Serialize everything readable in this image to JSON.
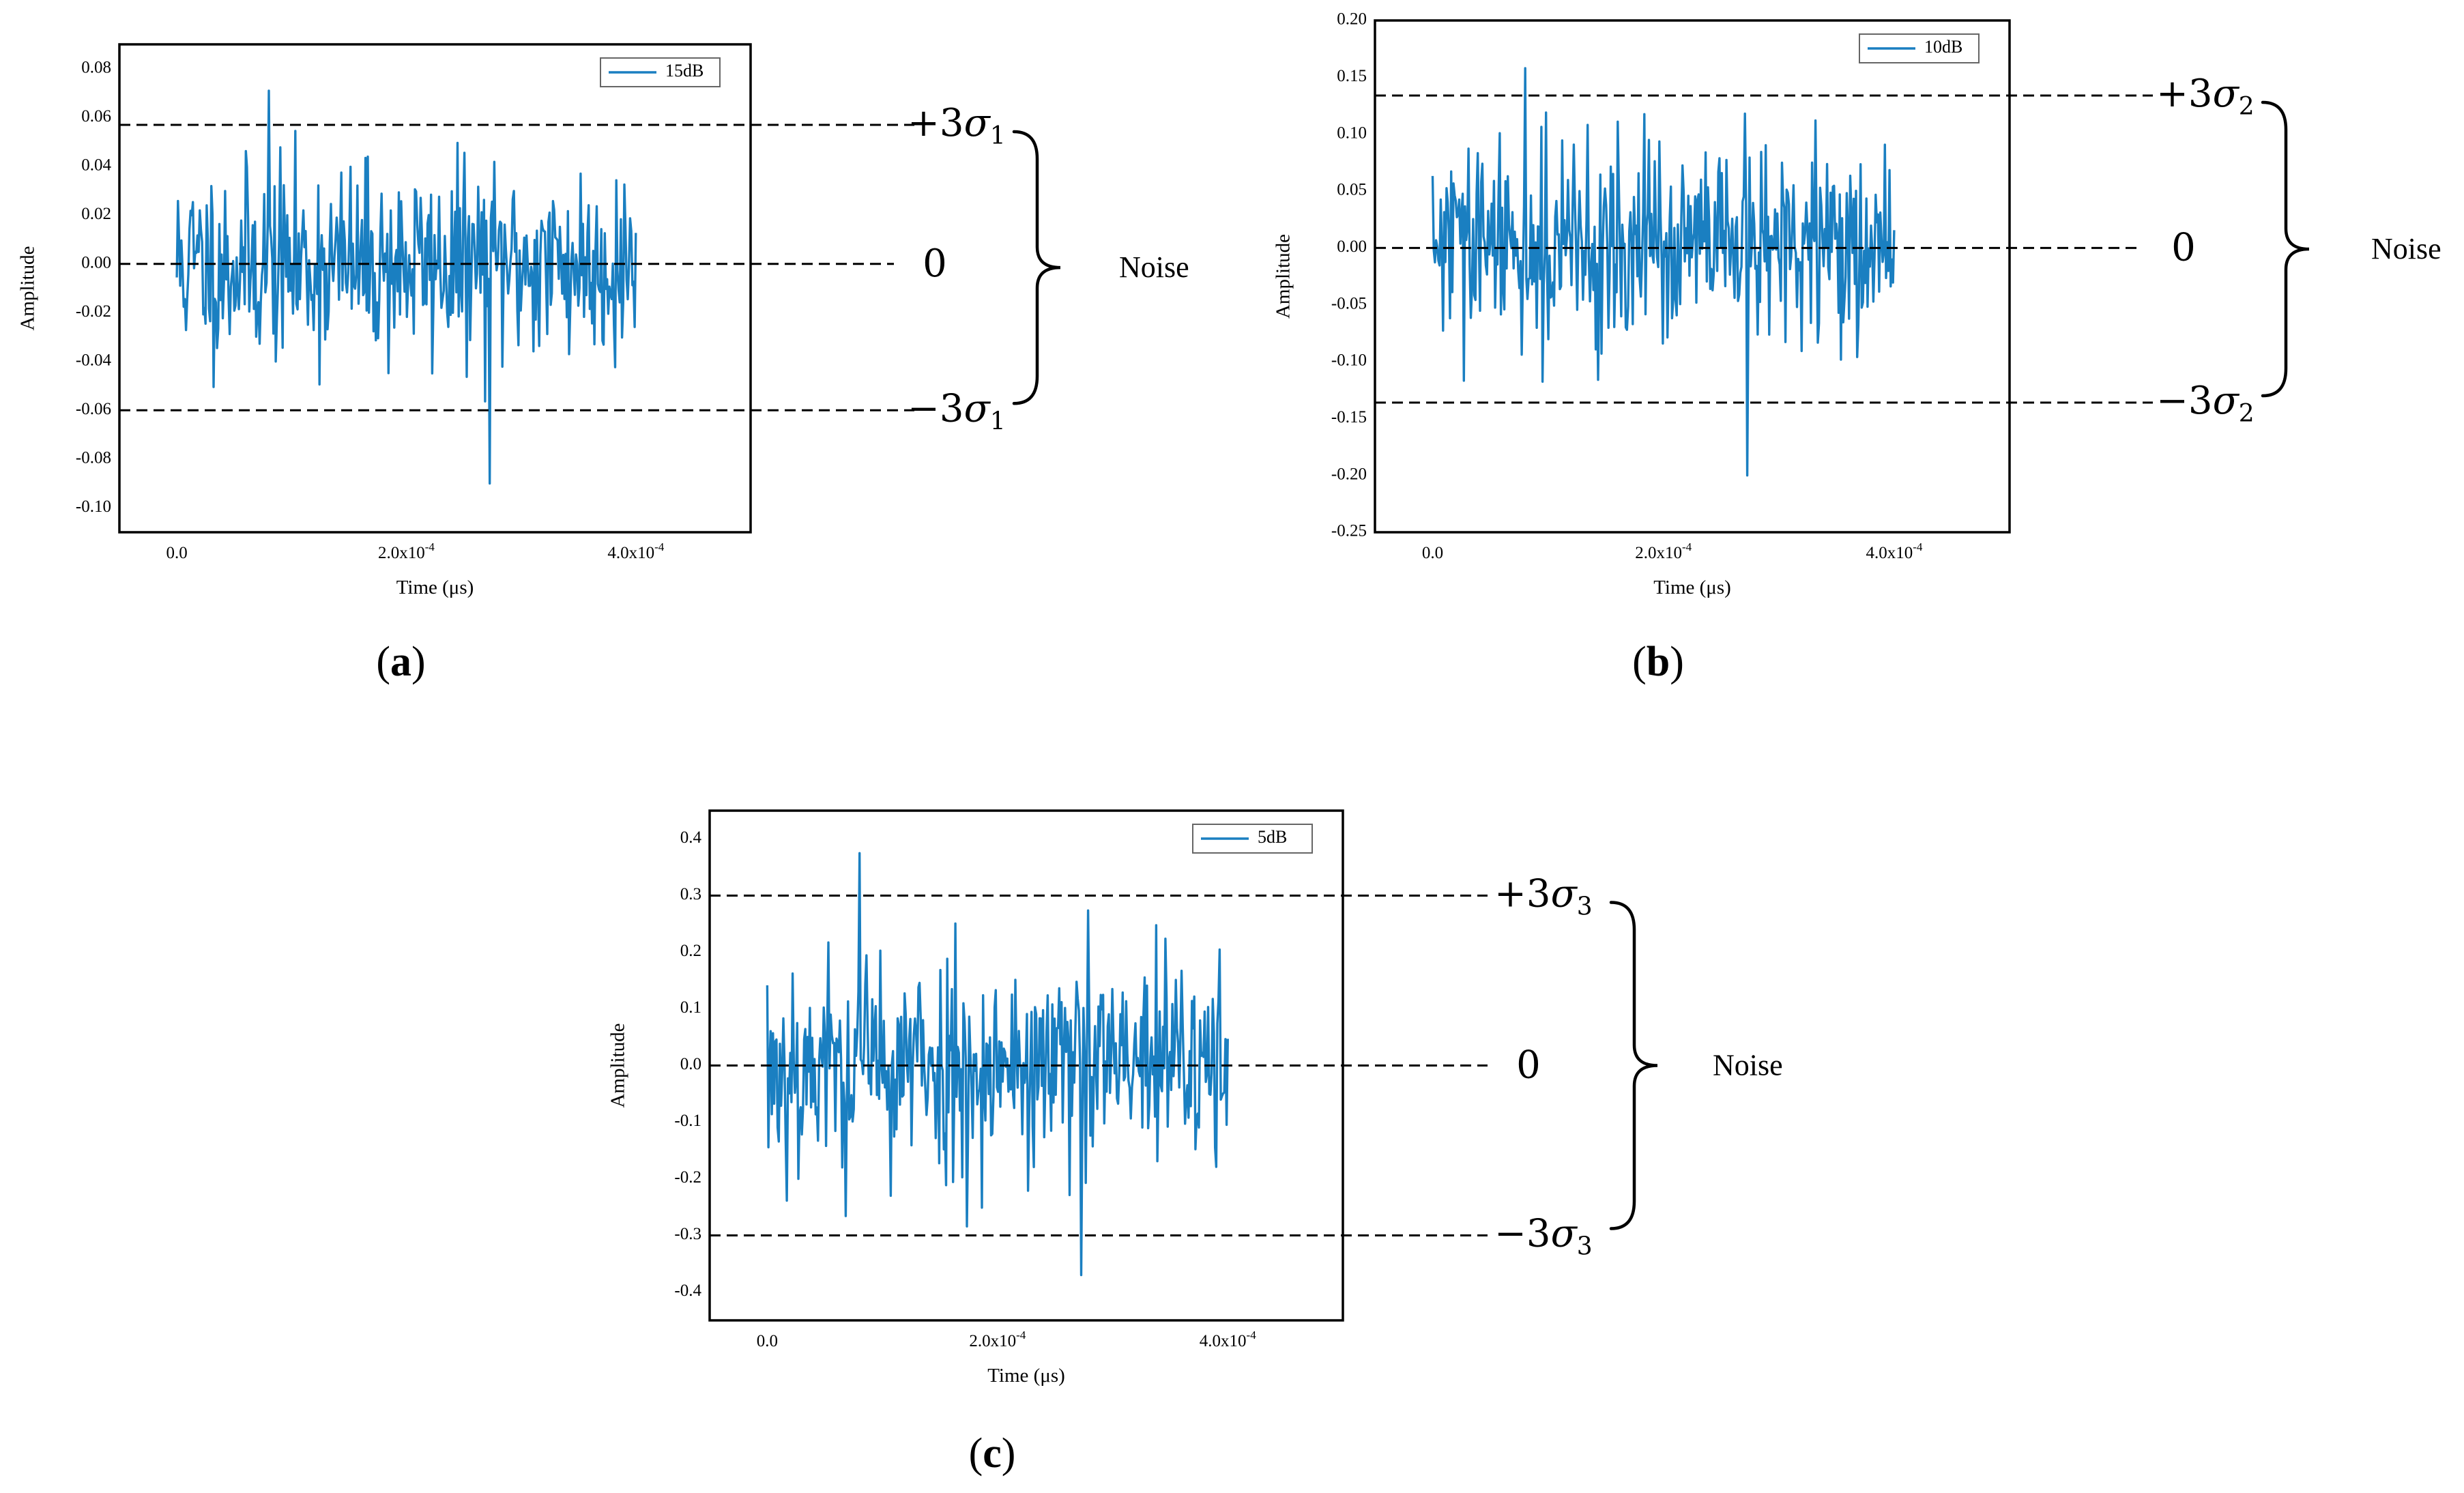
{
  "colors": {
    "signal": "#1a7fc1",
    "axis": "#000000",
    "text": "#000000"
  },
  "panels": [
    {
      "id": "a",
      "label": "a",
      "legend": "15dB",
      "xlabel": "Time (μs)",
      "ylabel": "Amplitude",
      "yticks": [
        "0.08",
        "0.06",
        "0.04",
        "0.02",
        "0.00",
        "-0.02",
        "-0.04",
        "-0.06",
        "-0.08",
        "-0.10"
      ],
      "xticks": [
        {
          "base": "0.0",
          "exp": ""
        },
        {
          "base": "2.0x10",
          "exp": "-4"
        },
        {
          "base": "4.0x10",
          "exp": "-4"
        }
      ],
      "plus_sigma_prefix": "+3",
      "minus_sigma_prefix": "−3",
      "sigma_symbol": "σ",
      "sigma_sub": "1",
      "zero_label": "0",
      "noise_label": "Noise"
    },
    {
      "id": "b",
      "label": "b",
      "legend": "10dB",
      "xlabel": "Time (μs)",
      "ylabel": "Amplitude",
      "yticks": [
        "0.20",
        "0.15",
        "0.10",
        "0.05",
        "0.00",
        "-0.05",
        "-0.10",
        "-0.15",
        "-0.20",
        "-0.25"
      ],
      "xticks": [
        {
          "base": "0.0",
          "exp": ""
        },
        {
          "base": "2.0x10",
          "exp": "-4"
        },
        {
          "base": "4.0x10",
          "exp": "-4"
        }
      ],
      "plus_sigma_prefix": "+3",
      "minus_sigma_prefix": "−3",
      "sigma_symbol": "σ",
      "sigma_sub": "2",
      "zero_label": "0",
      "noise_label": "Noise"
    },
    {
      "id": "c",
      "label": "c",
      "legend": "5dB",
      "xlabel": "Time (μs)",
      "ylabel": "Amplitude",
      "yticks": [
        "0.4",
        "0.3",
        "0.2",
        "0.1",
        "0.0",
        "-0.1",
        "-0.2",
        "-0.3",
        "-0.4"
      ],
      "xticks": [
        {
          "base": "0.0",
          "exp": ""
        },
        {
          "base": "2.0x10",
          "exp": "-4"
        },
        {
          "base": "4.0x10",
          "exp": "-4"
        }
      ],
      "plus_sigma_prefix": "+3",
      "minus_sigma_prefix": "−3",
      "sigma_symbol": "σ",
      "sigma_sub": "3",
      "zero_label": "0",
      "noise_label": "Noise"
    }
  ],
  "chart_data": [
    {
      "type": "line",
      "xlim": [
        -5e-05,
        0.0005
      ],
      "ylim": [
        -0.11,
        0.09
      ],
      "grid": false,
      "legend_position": "top-right",
      "series": [
        {
          "name": "15dB",
          "x_range": [
            0,
            0.0004
          ],
          "sample_count": 400,
          "std": 0.02,
          "min": -0.09,
          "max": 0.071,
          "mean": 0.0
        }
      ],
      "thresholds": {
        "plus_3sigma": 0.057,
        "zero": 0.0,
        "minus_3sigma": -0.06
      }
    },
    {
      "type": "line",
      "xlim": [
        -5e-05,
        0.0005
      ],
      "ylim": [
        -0.25,
        0.2
      ],
      "grid": false,
      "legend_position": "top-right",
      "series": [
        {
          "name": "10dB",
          "x_range": [
            0,
            0.0004
          ],
          "sample_count": 400,
          "std": 0.045,
          "min": -0.2,
          "max": 0.158,
          "mean": 0.0
        }
      ],
      "thresholds": {
        "plus_3sigma": 0.134,
        "zero": 0.0,
        "minus_3sigma": -0.136
      }
    },
    {
      "type": "line",
      "xlim": [
        -5e-05,
        0.0005
      ],
      "ylim": [
        -0.45,
        0.45
      ],
      "grid": false,
      "legend_position": "top-right",
      "series": [
        {
          "name": "5dB",
          "x_range": [
            0,
            0.0004
          ],
          "sample_count": 400,
          "std": 0.1,
          "min": -0.37,
          "max": 0.375,
          "mean": 0.0
        }
      ],
      "thresholds": {
        "plus_3sigma": 0.3,
        "zero": 0.0,
        "minus_3sigma": -0.3
      }
    }
  ]
}
